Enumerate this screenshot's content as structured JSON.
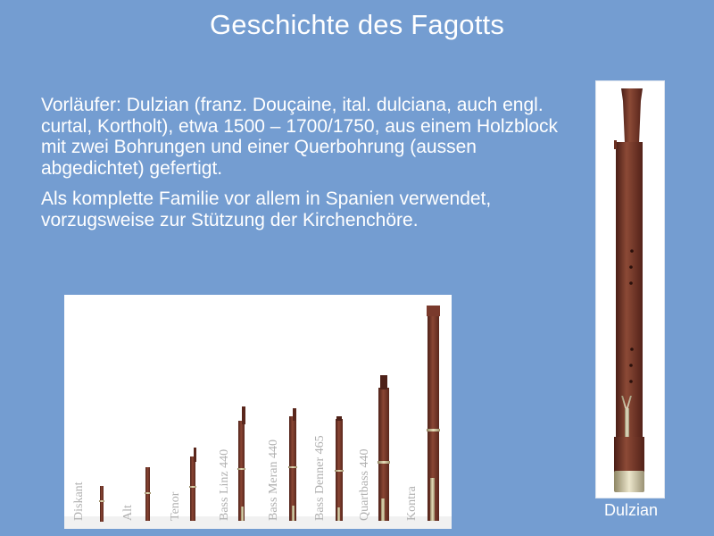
{
  "slide": {
    "title": "Geschichte des Fagotts",
    "paragraphs": [
      "Vorläufer: Dulzian (franz. Douçaine, ital. dulciana, auch engl. curtal, Kortholt), etwa 1500 – 1700/1750, aus einem Holzblock mit zwei Bohrungen und einer Querbohrung (aussen abgedichtet) gefertigt.",
      "Als komplette Familie vor allem in Spanien verwendet, vorzugsweise zur Stützung der Kirchenchöre."
    ]
  },
  "family_photo": {
    "labels": [
      "Diskant",
      "Alt",
      "Tenor",
      "Bass Linz 440",
      "Bass Meran 440",
      "Bass Denner 465",
      "Quartbass 440",
      "Kontra"
    ]
  },
  "dulzian_photo": {
    "caption": "Dulzian"
  },
  "colors": {
    "background": "#749dd1",
    "wood": "#7a3a2c",
    "brass": "#c9b98a"
  }
}
